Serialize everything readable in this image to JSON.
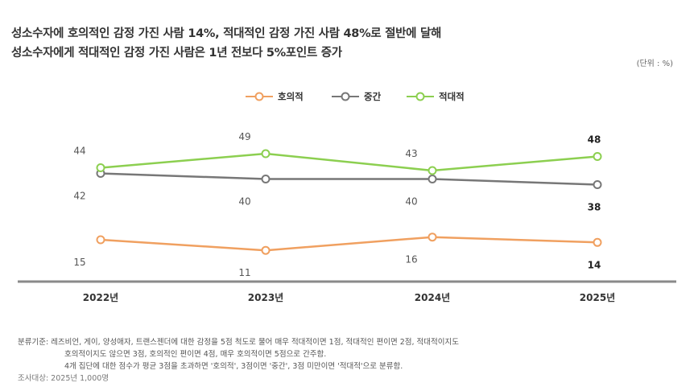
{
  "header": {
    "title_line1": "성소수자에 호의적인 감정 가진 사람 14%, 적대적인 감정 가진 사람 48%로 절반에 달해",
    "title_line2": "성소수자에게 적대적인 감정 가진 사람은 1년 전보다 5%포인트 증가",
    "unit": "(단위 : %)"
  },
  "chart_data": {
    "type": "line",
    "categories": [
      "2022년",
      "2023년",
      "2024년",
      "2025년"
    ],
    "series": [
      {
        "name": "호의적",
        "values": [
          15,
          11,
          16,
          14
        ],
        "color": "#f0a060"
      },
      {
        "name": "중간",
        "values": [
          42,
          40,
          40,
          38
        ],
        "color": "#777777"
      },
      {
        "name": "적대적",
        "values": [
          44,
          49,
          43,
          48
        ],
        "color": "#8ccf50"
      }
    ],
    "legend_position": "top-center",
    "grid": false
  },
  "notes": {
    "line1": "분류기준: 레즈비언, 게이, 양성애자, 트랜스젠더에 대한 감정을 5점 척도로 물어 매우 적대적이면 1점, 적대적인 편이면 2점, 적대적이지도",
    "line2": "호의적이지도 않으면 3점, 호의적인 편이면 4점, 매우 호의적이면 5점으로 간주함.",
    "line3": "4개 집단에 대한 점수가 평균 3점을 초과하면 '호의적', 3점이면 '중간', 3점 미만이면 '적대적'으로 분류함.",
    "source": "조사대상: 2025년 1,000명"
  }
}
